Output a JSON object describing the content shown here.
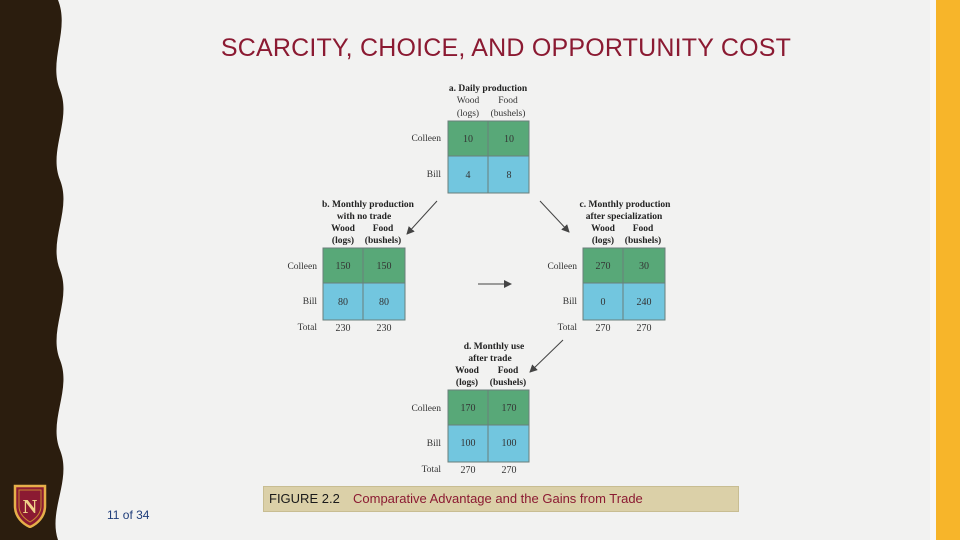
{
  "slide": {
    "title": "SCARCITY, CHOICE, AND OPPORTUNITY COST",
    "page": "11 of 34",
    "logo_letter": "N"
  },
  "caption": {
    "prefix": "FIGURE 2.2",
    "text": "Comparative Advantage and the Gains from Trade"
  },
  "colors": {
    "title": "#8b1a32",
    "accent_bar": "#f7b52a",
    "left_band": "#2b1d0e",
    "caption_bg": "#dbd0a8",
    "green_cell": "#58a878",
    "blue_cell": "#72c6df"
  },
  "figure": {
    "panels": [
      {
        "title": [
          "a. Daily production"
        ],
        "columns": [
          [
            "Wood",
            "(logs)"
          ],
          [
            "Food",
            "(bushels)"
          ]
        ],
        "rows": [
          {
            "label": "Colleen",
            "values": [
              "10",
              "10"
            ]
          },
          {
            "label": "Bill",
            "values": [
              "4",
              "8"
            ]
          }
        ]
      },
      {
        "title": [
          "b. Monthly production",
          "with no trade"
        ],
        "columns": [
          [
            "Wood",
            "(logs)"
          ],
          [
            "Food",
            "(bushels)"
          ]
        ],
        "rows": [
          {
            "label": "Colleen",
            "values": [
              "150",
              "150"
            ]
          },
          {
            "label": "Bill",
            "values": [
              "80",
              "80"
            ]
          }
        ],
        "total": {
          "label": "Total",
          "values": [
            "230",
            "230"
          ]
        }
      },
      {
        "title": [
          "c. Monthly production",
          "after specialization"
        ],
        "columns": [
          [
            "Wood",
            "(logs)"
          ],
          [
            "Food",
            "(bushels)"
          ]
        ],
        "rows": [
          {
            "label": "Colleen",
            "values": [
              "270",
              "30"
            ]
          },
          {
            "label": "Bill",
            "values": [
              "0",
              "240"
            ]
          }
        ],
        "total": {
          "label": "Total",
          "values": [
            "270",
            "270"
          ]
        }
      },
      {
        "title": [
          "d. Monthly use",
          "after trade"
        ],
        "columns": [
          [
            "Wood",
            "(logs)"
          ],
          [
            "Food",
            "(bushels)"
          ]
        ],
        "rows": [
          {
            "label": "Colleen",
            "values": [
              "170",
              "170"
            ]
          },
          {
            "label": "Bill",
            "values": [
              "100",
              "100"
            ]
          }
        ],
        "total": {
          "label": "Total",
          "values": [
            "270",
            "270"
          ]
        }
      }
    ]
  }
}
